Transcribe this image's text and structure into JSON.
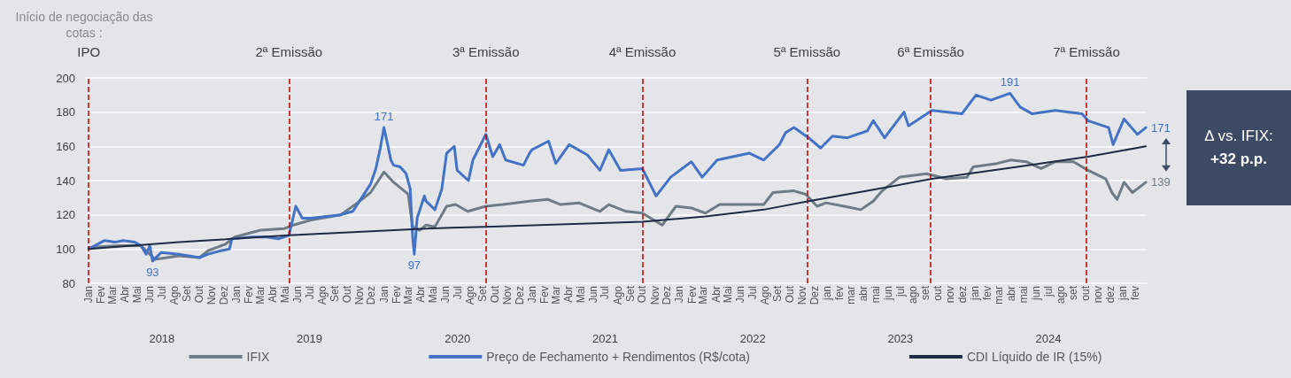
{
  "chart_data": {
    "type": "line",
    "title": "Início de negociação das cotas :",
    "xlim": [
      "2017-12-25",
      "2025-03-01"
    ],
    "xticks": [
      {
        "value": "2018-01-01",
        "label": "Jan"
      },
      {
        "value": "2018-02-01",
        "label": "Fev"
      },
      {
        "value": "2018-03-01",
        "label": "Mar"
      },
      {
        "value": "2018-04-01",
        "label": "Abr"
      },
      {
        "value": "2018-05-01",
        "label": "Mai"
      },
      {
        "value": "2018-06-01",
        "label": "Jun"
      },
      {
        "value": "2018-07-01",
        "label": "Jul"
      },
      {
        "value": "2018-08-01",
        "label": "Ago"
      },
      {
        "value": "2018-09-01",
        "label": "Set"
      },
      {
        "value": "2018-10-01",
        "label": "Out"
      },
      {
        "value": "2018-11-01",
        "label": "Nov"
      },
      {
        "value": "2018-12-01",
        "label": "Dez"
      },
      {
        "value": "2019-01-01",
        "label": "Jan"
      },
      {
        "value": "2019-02-01",
        "label": "Fev"
      },
      {
        "value": "2019-03-01",
        "label": "Mar"
      },
      {
        "value": "2019-04-01",
        "label": "Abr"
      },
      {
        "value": "2019-05-01",
        "label": "Mai"
      },
      {
        "value": "2019-06-01",
        "label": "Jun"
      },
      {
        "value": "2019-07-01",
        "label": "Jul"
      },
      {
        "value": "2019-08-01",
        "label": "Ago"
      },
      {
        "value": "2019-09-01",
        "label": "Set"
      },
      {
        "value": "2019-10-01",
        "label": "Out"
      },
      {
        "value": "2019-11-01",
        "label": "Nov"
      },
      {
        "value": "2019-12-01",
        "label": "Dez"
      },
      {
        "value": "2020-01-01",
        "label": "Jan"
      },
      {
        "value": "2020-02-01",
        "label": "Fev"
      },
      {
        "value": "2020-03-01",
        "label": "Mar"
      },
      {
        "value": "2020-04-01",
        "label": "Abr"
      },
      {
        "value": "2020-05-01",
        "label": "Mai"
      },
      {
        "value": "2020-06-01",
        "label": "Jun"
      },
      {
        "value": "2020-07-01",
        "label": "Jul"
      },
      {
        "value": "2020-08-01",
        "label": "Ago"
      },
      {
        "value": "2020-09-01",
        "label": "Set"
      },
      {
        "value": "2020-10-01",
        "label": "Out"
      },
      {
        "value": "2020-11-01",
        "label": "Nov"
      },
      {
        "value": "2020-12-01",
        "label": "Dez"
      },
      {
        "value": "2021-01-01",
        "label": "Jan"
      },
      {
        "value": "2021-02-01",
        "label": "Fev"
      },
      {
        "value": "2021-03-01",
        "label": "Mar"
      },
      {
        "value": "2021-04-01",
        "label": "Abr"
      },
      {
        "value": "2021-05-01",
        "label": "Mai"
      },
      {
        "value": "2021-06-01",
        "label": "Jun"
      },
      {
        "value": "2021-07-01",
        "label": "Jul"
      },
      {
        "value": "2021-08-01",
        "label": "Ago"
      },
      {
        "value": "2021-09-01",
        "label": "Set"
      },
      {
        "value": "2021-10-01",
        "label": "Out"
      },
      {
        "value": "2021-11-01",
        "label": "Nov"
      },
      {
        "value": "2021-12-01",
        "label": "Dez"
      },
      {
        "value": "2022-01-01",
        "label": "Jan"
      },
      {
        "value": "2022-02-01",
        "label": "Fev"
      },
      {
        "value": "2022-03-01",
        "label": "Mar"
      },
      {
        "value": "2022-04-01",
        "label": "Abr"
      },
      {
        "value": "2022-05-01",
        "label": "Mai"
      },
      {
        "value": "2022-06-01",
        "label": "Jun"
      },
      {
        "value": "2022-07-01",
        "label": "Jul"
      },
      {
        "value": "2022-08-01",
        "label": "Ago"
      },
      {
        "value": "2022-09-01",
        "label": "Set"
      },
      {
        "value": "2022-10-01",
        "label": "Out"
      },
      {
        "value": "2022-11-01",
        "label": "Nov"
      },
      {
        "value": "2022-12-01",
        "label": "Dez"
      },
      {
        "value": "2023-01-01",
        "label": "jan"
      },
      {
        "value": "2023-02-01",
        "label": "fev"
      },
      {
        "value": "2023-03-01",
        "label": "mar"
      },
      {
        "value": "2023-04-01",
        "label": "abr"
      },
      {
        "value": "2023-05-01",
        "label": "mai"
      },
      {
        "value": "2023-06-01",
        "label": "jun"
      },
      {
        "value": "2023-07-01",
        "label": "jul"
      },
      {
        "value": "2023-08-01",
        "label": "ago"
      },
      {
        "value": "2023-09-01",
        "label": "set"
      },
      {
        "value": "2023-10-01",
        "label": "out"
      },
      {
        "value": "2023-11-01",
        "label": "nov"
      },
      {
        "value": "2023-12-01",
        "label": "dez"
      },
      {
        "value": "2024-01-01",
        "label": "jan"
      },
      {
        "value": "2024-02-01",
        "label": "fev"
      },
      {
        "value": "2024-03-01",
        "label": "mar"
      },
      {
        "value": "2024-04-01",
        "label": "abr"
      },
      {
        "value": "2024-05-01",
        "label": "mai"
      },
      {
        "value": "2024-06-01",
        "label": "jun"
      },
      {
        "value": "2024-07-01",
        "label": "jul"
      },
      {
        "value": "2024-08-01",
        "label": "ago"
      },
      {
        "value": "2024-09-01",
        "label": "set"
      },
      {
        "value": "2024-10-01",
        "label": "out"
      },
      {
        "value": "2024-11-01",
        "label": "nov"
      },
      {
        "value": "2024-12-01",
        "label": "dez"
      },
      {
        "value": "2025-01-01",
        "label": "jan"
      },
      {
        "value": "2025-02-01",
        "label": "fev"
      }
    ],
    "x2ticks": [
      {
        "value": "2018-07-01",
        "label": "2018"
      },
      {
        "value": "2019-07-01",
        "label": "2019"
      },
      {
        "value": "2020-07-01",
        "label": "2020"
      },
      {
        "value": "2021-07-01",
        "label": "2021"
      },
      {
        "value": "2022-07-01",
        "label": "2022"
      },
      {
        "value": "2023-07-01",
        "label": "2023"
      },
      {
        "value": "2024-07-01",
        "label": "2024"
      }
    ],
    "x2lim": [
      "2017-12-25",
      "2025-03-01"
    ],
    "ylim": [
      80,
      200
    ],
    "yticks": [
      80,
      100,
      120,
      140,
      160,
      180,
      200
    ],
    "grid": "y",
    "legend": "bottom",
    "line_style": "solid",
    "series": [
      {
        "name": "IFIX",
        "color": "#6f7b85",
        "x": [
          "2018-01-01",
          "2018-03-17",
          "2018-05-10",
          "2018-06-14",
          "2018-08-12",
          "2018-10-02",
          "2018-10-23",
          "2018-12-06",
          "2018-12-28",
          "2019-03-02",
          "2019-04-30",
          "2019-05-22",
          "2019-07-05",
          "2019-09-16",
          "2019-10-22",
          "2019-11-29",
          "2020-01-01",
          "2020-01-25",
          "2020-03-01",
          "2020-03-12",
          "2020-03-29",
          "2020-04-14",
          "2020-05-06",
          "2020-06-04",
          "2020-06-26",
          "2020-07-26",
          "2020-09-09",
          "2020-10-21",
          "2020-12-26",
          "2021-02-09",
          "2021-03-13",
          "2021-04-27",
          "2021-06-18",
          "2021-07-10",
          "2021-08-22",
          "2021-10-01",
          "2021-11-19",
          "2021-12-23",
          "2022-01-30",
          "2022-03-06",
          "2022-04-10",
          "2022-06-10",
          "2022-07-28",
          "2022-08-20",
          "2022-10-11",
          "2022-11-09",
          "2022-12-07",
          "2022-12-29",
          "2023-02-12",
          "2023-03-25",
          "2023-04-25",
          "2023-05-17",
          "2023-06-29",
          "2023-09-04",
          "2023-10-23",
          "2023-12-13",
          "2023-12-28",
          "2024-02-25",
          "2024-03-30",
          "2024-05-07",
          "2024-06-13",
          "2024-07-18",
          "2024-09-01",
          "2024-10-07",
          "2024-11-20",
          "2024-12-05",
          "2024-12-18",
          "2025-01-04",
          "2025-01-25",
          "2025-02-27"
        ],
        "values": [
          101,
          102,
          102,
          94,
          96,
          95,
          99,
          103,
          107,
          111,
          112,
          114,
          117,
          120,
          126,
          133,
          145,
          139,
          132,
          113,
          111,
          114,
          113,
          125,
          126,
          122,
          125,
          126,
          128,
          129,
          126,
          127,
          122,
          126,
          122,
          121,
          114,
          125,
          124,
          121,
          126,
          126,
          126,
          133,
          134,
          132,
          125,
          127,
          125,
          123,
          128,
          134,
          142,
          144,
          141,
          142,
          148,
          150,
          152,
          151,
          147,
          151,
          151,
          146,
          141,
          133,
          129,
          139,
          133,
          139
        ],
        "value_labels": [
          null,
          null,
          null,
          null,
          null,
          null,
          null,
          null,
          null,
          null,
          null,
          null,
          null,
          null,
          null,
          null,
          null,
          null,
          null,
          null,
          null,
          null,
          null,
          null,
          null,
          null,
          null,
          null,
          null,
          null,
          null,
          null,
          null,
          null,
          null,
          null,
          null,
          null,
          null,
          null,
          null,
          null,
          null,
          null,
          null,
          null,
          null,
          null,
          null,
          null,
          null,
          null,
          null,
          null,
          null,
          null,
          null,
          null,
          null,
          null,
          null,
          null,
          null,
          null,
          null,
          null,
          null,
          null,
          null,
          "139"
        ]
      },
      {
        "name": "Preço de Fechamento + Rendimentos (R$/cota)",
        "color": "#4472c4",
        "x": [
          "2018-01-01",
          "2018-02-09",
          "2018-03-07",
          "2018-03-27",
          "2018-04-25",
          "2018-05-10",
          "2018-05-23",
          "2018-06-01",
          "2018-06-08",
          "2018-06-29",
          "2018-08-12",
          "2018-10-02",
          "2018-10-23",
          "2018-11-23",
          "2018-12-15",
          "2018-12-21",
          "2019-02-10",
          "2019-03-17",
          "2019-04-15",
          "2019-05-11",
          "2019-05-28",
          "2019-06-13",
          "2019-07-05",
          "2019-08-11",
          "2019-09-16",
          "2019-10-16",
          "2019-11-07",
          "2019-11-29",
          "2019-12-12",
          "2019-12-23",
          "2020-01-01",
          "2020-01-12",
          "2020-01-18",
          "2020-01-25",
          "2020-02-10",
          "2020-02-25",
          "2020-03-06",
          "2020-03-12",
          "2020-03-16",
          "2020-03-23",
          "2020-04-10",
          "2020-04-14",
          "2020-05-06",
          "2020-05-23",
          "2020-06-04",
          "2020-06-23",
          "2020-06-30",
          "2020-07-28",
          "2020-08-08",
          "2020-09-09",
          "2020-09-26",
          "2020-10-13",
          "2020-10-28",
          "2020-12-11",
          "2020-12-26",
          "2021-01-01",
          "2021-02-11",
          "2021-03-01",
          "2021-04-03",
          "2021-05-18",
          "2021-06-18",
          "2021-07-10",
          "2021-08-08",
          "2021-10-01",
          "2021-11-04",
          "2021-12-10",
          "2022-01-30",
          "2022-02-26",
          "2022-04-04",
          "2022-06-23",
          "2022-07-28",
          "2022-09-05",
          "2022-09-20",
          "2022-10-11",
          "2022-11-16",
          "2022-12-16",
          "2023-01-14",
          "2023-02-20",
          "2023-04-10",
          "2023-04-25",
          "2023-05-23",
          "2023-07-10",
          "2023-07-21",
          "2023-09-17",
          "2023-11-30",
          "2024-01-04",
          "2024-02-10",
          "2024-03-28",
          "2024-04-22",
          "2024-05-22",
          "2024-07-18",
          "2024-09-22",
          "2024-10-07",
          "2024-11-27",
          "2024-12-08",
          "2025-01-04",
          "2025-02-06",
          "2025-02-27"
        ],
        "values": [
          100,
          105,
          104,
          105,
          104,
          102,
          97,
          102,
          93,
          98,
          97,
          95,
          97,
          99,
          100,
          106,
          107,
          107,
          106,
          108,
          125,
          118,
          118,
          119,
          120,
          122,
          130,
          138,
          147,
          159,
          171,
          159,
          152,
          149,
          148,
          144,
          135,
          107,
          97,
          118,
          131,
          128,
          123,
          135,
          156,
          160,
          146,
          140,
          152,
          167,
          154,
          161,
          152,
          149,
          156,
          158,
          163,
          150,
          161,
          155,
          146,
          158,
          146,
          147,
          131,
          142,
          151,
          142,
          152,
          156,
          152,
          161,
          168,
          171,
          165,
          159,
          166,
          165,
          169,
          175,
          165,
          180,
          172,
          181,
          179,
          190,
          187,
          191,
          183,
          179,
          181,
          179,
          175,
          171,
          161,
          176,
          167,
          171
        ],
        "value_labels": [
          null,
          null,
          null,
          null,
          null,
          null,
          null,
          null,
          "93",
          null,
          null,
          null,
          null,
          null,
          null,
          null,
          null,
          null,
          null,
          null,
          null,
          null,
          null,
          null,
          null,
          null,
          null,
          null,
          null,
          null,
          "171",
          null,
          null,
          null,
          null,
          null,
          null,
          null,
          "97",
          null,
          null,
          null,
          null,
          null,
          null,
          null,
          null,
          null,
          null,
          null,
          null,
          null,
          null,
          null,
          null,
          null,
          null,
          null,
          null,
          null,
          null,
          null,
          null,
          null,
          null,
          null,
          null,
          null,
          null,
          null,
          null,
          null,
          null,
          null,
          null,
          null,
          null,
          null,
          null,
          null,
          null,
          null,
          null,
          null,
          null,
          null,
          null,
          "191",
          null,
          null,
          null,
          null,
          null,
          null,
          null,
          null,
          null,
          "171"
        ]
      },
      {
        "name": "CDI Líquido de IR (15%)",
        "color": "#1f2a44",
        "x": [
          "2018-01-01",
          "2018-08-12",
          "2019-05-11",
          "2020-04-14",
          "2020-09-09",
          "2021-10-01",
          "2022-03-06",
          "2022-07-28",
          "2022-11-16",
          "2023-04-10",
          "2023-09-17",
          "2024-04-15",
          "2024-10-07",
          "2025-02-27"
        ],
        "values": [
          100,
          104,
          108,
          112,
          113,
          116,
          119,
          123,
          128,
          134,
          141,
          148,
          154,
          160
        ]
      }
    ],
    "ref_lines": [
      {
        "axis": "x",
        "value": "2018-01-01",
        "label": "IPO",
        "color": "#c00000",
        "line_style": "dashed"
      },
      {
        "axis": "x",
        "value": "2019-05-11",
        "label": "2ª Emissão",
        "color": "#c00000",
        "line_style": "dashed"
      },
      {
        "axis": "x",
        "value": "2020-09-09",
        "label": "3ª Emissão",
        "color": "#c00000",
        "line_style": "dashed"
      },
      {
        "axis": "x",
        "value": "2021-10-01",
        "label": "4ª Emissão",
        "color": "#c00000",
        "line_style": "dashed"
      },
      {
        "axis": "x",
        "value": "2022-11-12",
        "label": "5ª Emissão",
        "color": "#c00000",
        "line_style": "dashed"
      },
      {
        "axis": "x",
        "value": "2023-09-14",
        "label": "6ª Emissão",
        "color": "#c00000",
        "line_style": "dashed"
      },
      {
        "axis": "x",
        "value": "2024-10-03",
        "label": "7ª Emissão",
        "color": "#c00000",
        "line_style": "dashed"
      }
    ],
    "annotations": [
      "Δ vs. IFIX:",
      "+32 p.p."
    ]
  }
}
